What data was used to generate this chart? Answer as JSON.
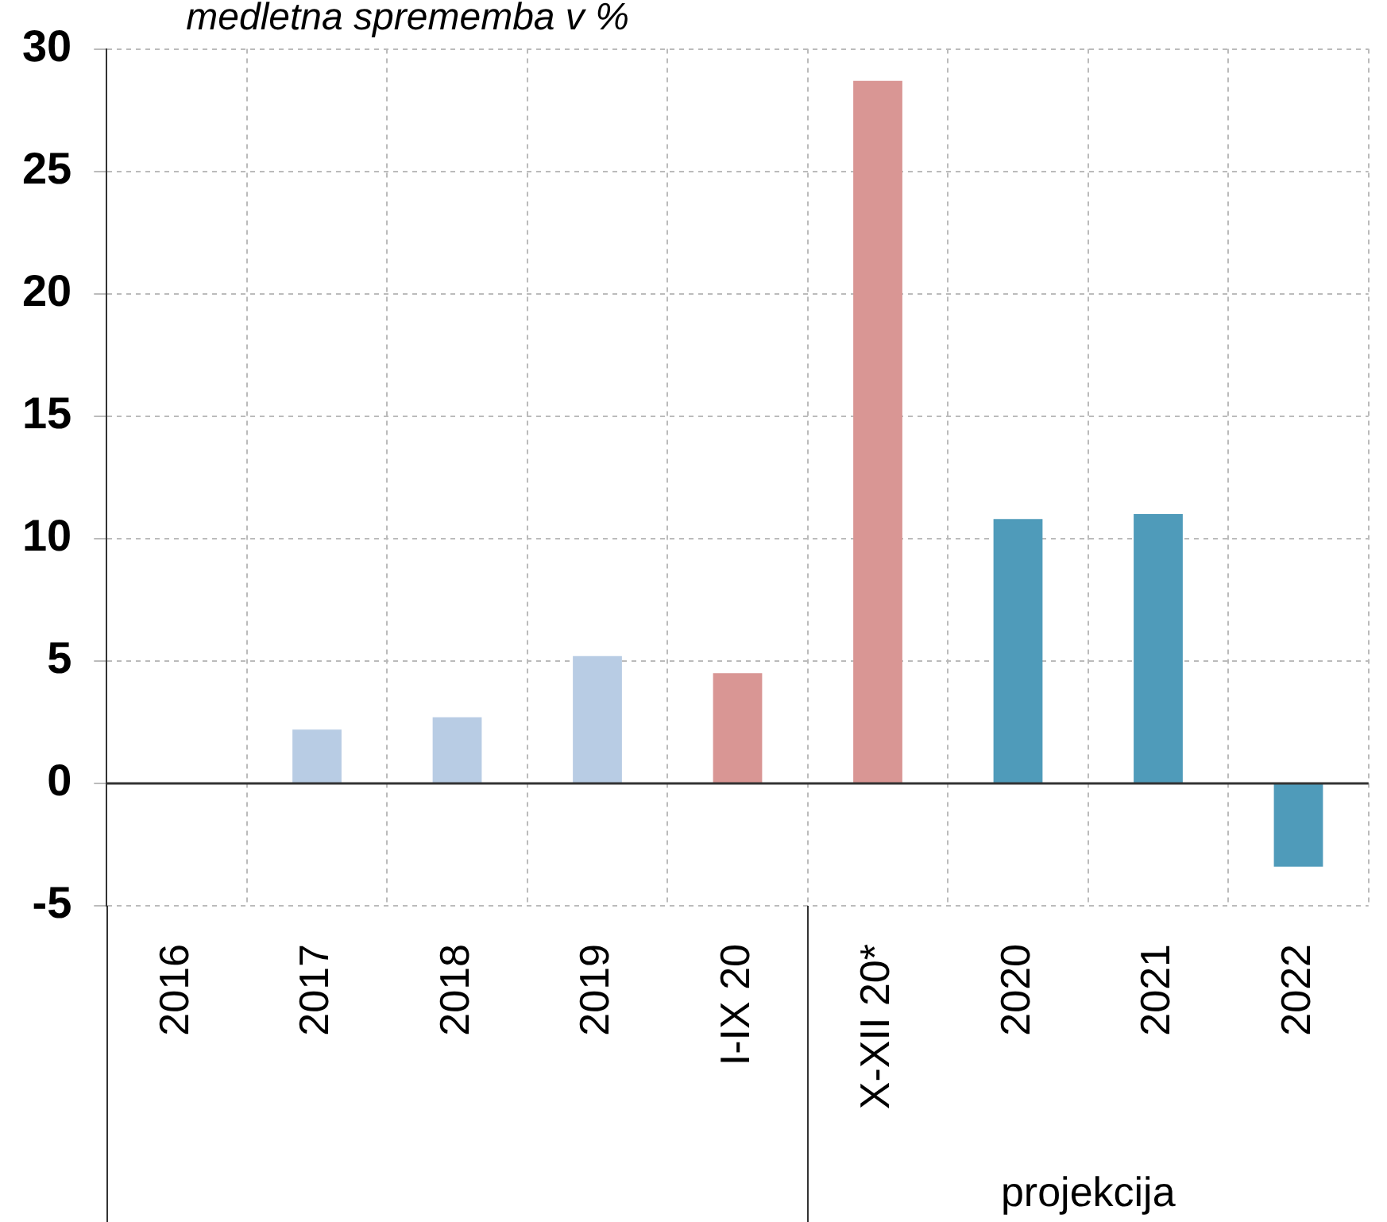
{
  "chart_data": {
    "type": "bar",
    "ylabel": "medletna sprememba v %",
    "categories": [
      "2016",
      "2017",
      "2018",
      "2019",
      "I-IX 20",
      "X-XII 20*",
      "2020",
      "2021",
      "2022"
    ],
    "values": [
      0,
      2.2,
      2.7,
      5.2,
      4.5,
      28.7,
      10.8,
      11.0,
      -3.4
    ],
    "colors": [
      "#b8cce4",
      "#b8cce4",
      "#b8cce4",
      "#b8cce4",
      "#d99694",
      "#d99694",
      "#4f9bba",
      "#4f9bba",
      "#4f9bba"
    ],
    "ref_lines": [
      {
        "axis": "y",
        "value": 0,
        "color": "#333333"
      }
    ],
    "ylim": [
      -5,
      30
    ],
    "yticks": [
      -5,
      0,
      5,
      10,
      15,
      20,
      25,
      30
    ],
    "grid": true,
    "annotations": [
      "projekcija"
    ]
  }
}
